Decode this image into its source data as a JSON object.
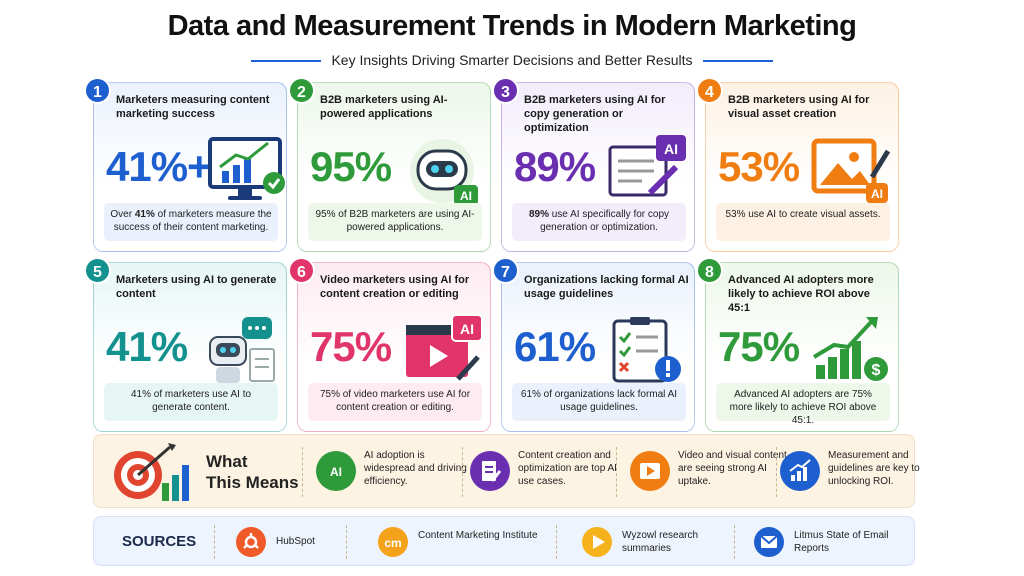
{
  "header": {
    "title": "Data and Measurement Trends in Modern Marketing",
    "subtitle": "Key Insights Driving Smarter Decisions and Better Results"
  },
  "cards": [
    {
      "num": "1",
      "title": "Marketers measuring content marketing success",
      "pct": "41%+",
      "desc_bold": "41%",
      "desc_pre": "Over ",
      "desc_post": " of marketers measure the success of their content marketing.",
      "color": "#1e5fd0",
      "bg": "#eaf1fc",
      "icon": "monitor-chart-icon"
    },
    {
      "num": "2",
      "title": "B2B marketers using AI-powered applications",
      "pct": "95%",
      "desc_bold": "",
      "desc_pre": "95% of B2B marketers are using AI-powered applications.",
      "desc_post": "",
      "color": "#2e9a3a",
      "bg": "#edf7ea",
      "icon": "robot-ai-icon"
    },
    {
      "num": "3",
      "title": "B2B marketers using AI for copy generation or optimization",
      "pct": "89%",
      "desc_bold": "89%",
      "desc_pre": "",
      "desc_post": " use AI specifically for copy generation or optimization.",
      "color": "#6a2fb0",
      "bg": "#f2ecfb",
      "icon": "document-ai-icon"
    },
    {
      "num": "4",
      "title": "B2B marketers using AI for visual asset creation",
      "pct": "53%",
      "desc_bold": "",
      "desc_pre": "53% use AI to create visual assets.",
      "desc_post": "",
      "color": "#ef7d11",
      "bg": "#fdf1e3",
      "icon": "image-brush-icon"
    },
    {
      "num": "5",
      "title": "Marketers using AI to generate content",
      "pct": "41%",
      "desc_bold": "",
      "desc_pre": "41% of marketers use AI to generate content.",
      "desc_post": "",
      "color": "#13918f",
      "bg": "#e6f6f5",
      "icon": "robot-chat-icon"
    },
    {
      "num": "6",
      "title": "Video marketers using AI for content creation or editing",
      "pct": "75%",
      "desc_bold": "",
      "desc_pre": "75% of video marketers use AI for content creation or editing.",
      "desc_post": "",
      "color": "#e0346a",
      "bg": "#fdebf1",
      "icon": "video-ai-icon"
    },
    {
      "num": "7",
      "title": "Organizations lacking formal AI usage guidelines",
      "pct": "61%",
      "desc_bold": "",
      "desc_pre": "61% of organizations lack formal AI usage guidelines.",
      "desc_post": "",
      "color": "#1e5fd0",
      "bg": "#eaf1fc",
      "icon": "checklist-alert-icon"
    },
    {
      "num": "8",
      "title": "Advanced AI adopters more likely to achieve ROI above 45:1",
      "pct": "75%",
      "desc_bold": "",
      "desc_pre": "Advanced AI adopters are 75% more likely to achieve ROI above 45:1.",
      "desc_post": "",
      "color": "#2e9a3a",
      "bg": "#edf7ea",
      "icon": "growth-chart-dollar-icon"
    }
  ],
  "means": {
    "title_line1": "What",
    "title_line2": "This Means",
    "items": [
      {
        "text": "AI adoption is widespread and driving efficiency.",
        "color": "#2e9a3a",
        "icon": "ai-brain-icon"
      },
      {
        "text": "Content creation and optimization are top AI use cases.",
        "color": "#6a2fb0",
        "icon": "document-pen-icon"
      },
      {
        "text": "Video and visual content are seeing strong AI uptake.",
        "color": "#ef7d11",
        "icon": "video-play-icon"
      },
      {
        "text": "Measurement and guidelines are key to unlocking ROI.",
        "color": "#1e5fd0",
        "icon": "chart-arrow-icon"
      }
    ]
  },
  "sources": {
    "title": "SOURCES",
    "items": [
      {
        "text": "HubSpot",
        "color": "#f05a28",
        "icon": "hubspot-logo-icon"
      },
      {
        "text": "Content Marketing Institute",
        "color": "#f5a21b",
        "icon": "cmi-logo-icon",
        "logo_text": "cm"
      },
      {
        "text": "Wyzowl research summaries",
        "color": "#f5b21b",
        "icon": "play-logo-icon"
      },
      {
        "text": "Litmus State of Email Reports",
        "color": "#1e5fd0",
        "icon": "email-icon"
      }
    ]
  }
}
